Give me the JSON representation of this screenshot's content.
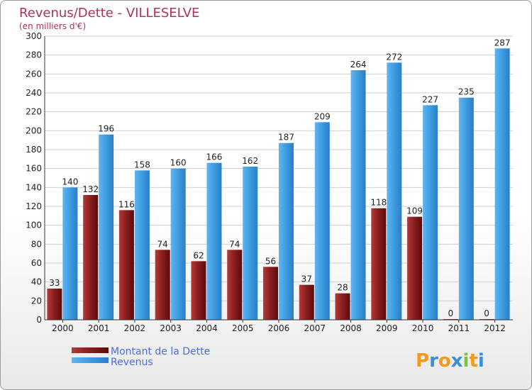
{
  "chart_data": {
    "type": "bar",
    "title": "Revenus/Dette - VILLESELVE",
    "subtitle": "(en milliers d'€)",
    "xlabel": "",
    "ylabel": "",
    "ylim": [
      0,
      300
    ],
    "yticks": [
      0,
      20,
      40,
      60,
      80,
      100,
      120,
      140,
      160,
      180,
      200,
      220,
      240,
      260,
      280,
      300
    ],
    "grid": true,
    "legend_position": "bottom-left",
    "categories": [
      "2000",
      "2001",
      "2002",
      "2003",
      "2004",
      "2005",
      "2006",
      "2007",
      "2008",
      "2009",
      "2010",
      "2011",
      "2012"
    ],
    "series": [
      {
        "name": "Montant de la Dette",
        "color": "#8b1a1a",
        "values": [
          33,
          132,
          116,
          74,
          62,
          74,
          56,
          37,
          28,
          118,
          109,
          0,
          0
        ]
      },
      {
        "name": "Revenus",
        "color": "#4aa3e8",
        "values": [
          140,
          196,
          158,
          160,
          166,
          162,
          187,
          209,
          264,
          272,
          227,
          235,
          287
        ]
      }
    ]
  },
  "branding": {
    "logo_letters": [
      "P",
      "r",
      "o",
      "x",
      "i",
      "t",
      "i"
    ],
    "logo_colors": [
      "#f39a1e",
      "#3a8fd6",
      "#f39a1e",
      "#3a8fd6",
      "#7cc242",
      "#f39a1e",
      "#3a8fd6"
    ]
  }
}
